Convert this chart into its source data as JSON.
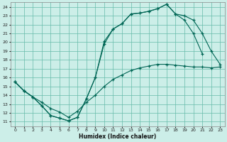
{
  "xlabel": "Humidex (Indice chaleur)",
  "bg_color": "#cceee8",
  "grid_color": "#66bbaa",
  "line_color": "#006655",
  "xlim": [
    -0.5,
    23.5
  ],
  "ylim": [
    10.5,
    24.5
  ],
  "xticks": [
    0,
    1,
    2,
    3,
    4,
    5,
    6,
    7,
    8,
    9,
    10,
    11,
    12,
    13,
    14,
    15,
    16,
    17,
    18,
    19,
    20,
    21,
    22,
    23
  ],
  "yticks": [
    11,
    12,
    13,
    14,
    15,
    16,
    17,
    18,
    19,
    20,
    21,
    22,
    23,
    24
  ],
  "curve1_x": [
    0,
    1,
    2,
    3,
    4,
    5,
    6,
    7,
    8,
    9,
    10,
    11,
    12,
    13,
    14,
    15,
    16,
    17,
    18,
    19,
    20,
    21,
    22,
    23
  ],
  "curve1_y": [
    15.5,
    14.5,
    13.8,
    12.8,
    11.7,
    11.4,
    11.1,
    11.5,
    13.6,
    16.0,
    20.1,
    21.5,
    22.1,
    23.2,
    23.3,
    23.5,
    23.8,
    24.3,
    23.2,
    22.5,
    21.0,
    18.7,
    null,
    null
  ],
  "curve2_x": [
    0,
    1,
    2,
    3,
    4,
    5,
    6,
    7,
    8,
    9,
    10,
    11,
    12,
    13,
    14,
    15,
    16,
    17,
    18,
    19,
    20,
    21,
    22,
    23
  ],
  "curve2_y": [
    15.5,
    14.5,
    13.8,
    12.8,
    11.7,
    11.4,
    11.1,
    11.5,
    13.6,
    16.0,
    19.8,
    21.5,
    22.1,
    23.2,
    23.3,
    23.5,
    23.8,
    24.3,
    23.2,
    23.0,
    22.5,
    21.0,
    19.0,
    17.5
  ],
  "curve3_x": [
    0,
    1,
    2,
    3,
    4,
    5,
    6,
    7,
    8,
    9,
    10,
    11,
    12,
    13,
    14,
    15,
    16,
    17,
    18,
    19,
    20,
    21,
    22,
    23
  ],
  "curve3_y": [
    15.5,
    14.5,
    13.8,
    13.2,
    12.5,
    12.1,
    11.5,
    12.2,
    13.2,
    14.0,
    15.0,
    15.8,
    16.3,
    16.8,
    17.1,
    17.3,
    17.5,
    17.5,
    17.4,
    17.3,
    17.2,
    17.2,
    17.1,
    17.2
  ]
}
